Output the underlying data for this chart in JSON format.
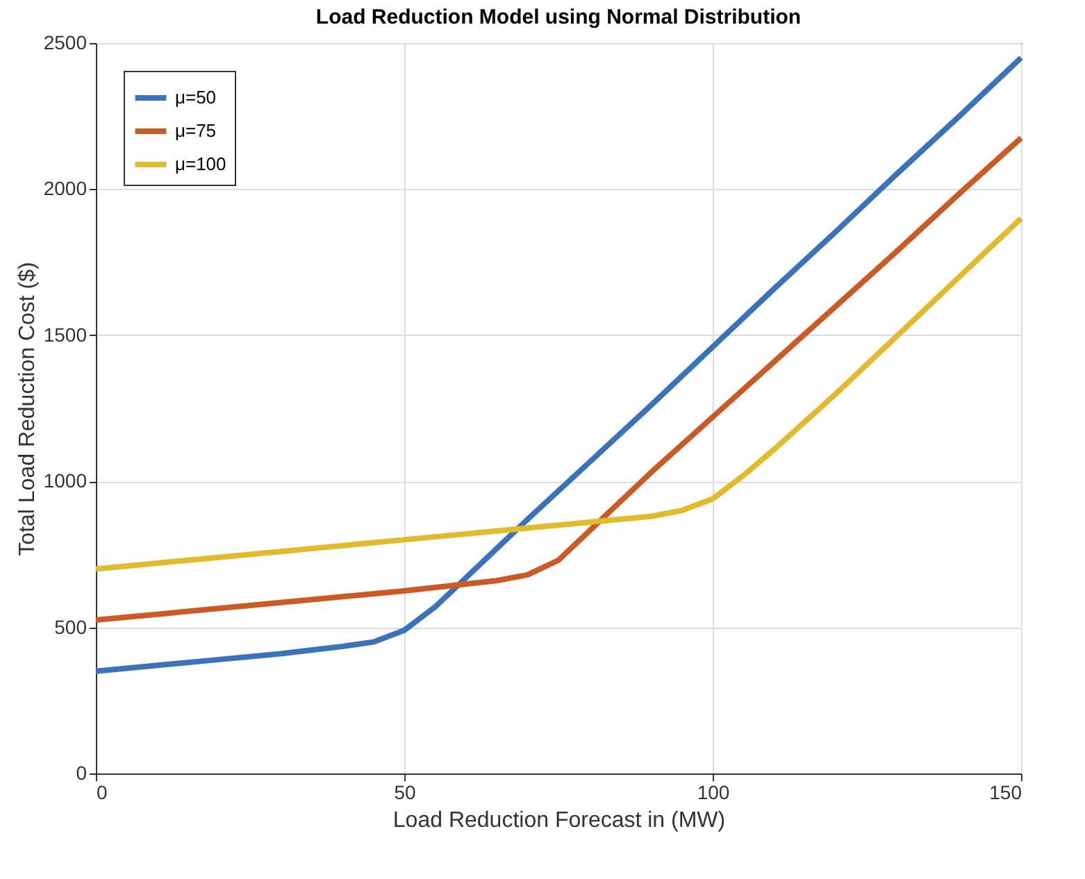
{
  "chart_data": {
    "type": "line",
    "title": "Load Reduction Model using Normal Distribution",
    "xlabel": "Load Reduction Forecast in (MW)",
    "ylabel": "Total Load Reduction Cost ($)",
    "xlim": [
      0,
      150
    ],
    "xticks": [
      0,
      50,
      100,
      150
    ],
    "ylim": [
      0,
      2500
    ],
    "yticks": [
      0,
      500,
      1000,
      1500,
      2000,
      2500
    ],
    "grid": true,
    "legend": "top left",
    "line_style": "solid",
    "marker": "none",
    "series": [
      {
        "name": "μ=50",
        "color": "#3a73b9",
        "x": [
          0,
          10,
          20,
          30,
          40,
          45,
          50,
          55,
          60,
          65,
          70,
          80,
          90,
          100,
          110,
          120,
          130,
          140,
          150
        ],
        "values": [
          350,
          370,
          390,
          410,
          435,
          450,
          490,
          570,
          670,
          770,
          870,
          1065,
          1260,
          1460,
          1660,
          1855,
          2055,
          2250,
          2450
        ]
      },
      {
        "name": "μ=75",
        "color": "#cc5a27",
        "x": [
          0,
          25,
          50,
          65,
          70,
          75,
          80,
          85,
          90,
          100,
          110,
          120,
          130,
          140,
          150
        ],
        "values": [
          525,
          575,
          625,
          660,
          680,
          730,
          830,
          930,
          1030,
          1220,
          1410,
          1600,
          1790,
          1985,
          2175
        ]
      },
      {
        "name": "μ=100",
        "color": "#e2bb2d",
        "x": [
          0,
          25,
          50,
          75,
          90,
          95,
          100,
          105,
          110,
          120,
          130,
          140,
          150
        ],
        "values": [
          700,
          750,
          800,
          850,
          880,
          900,
          940,
          1020,
          1110,
          1300,
          1500,
          1700,
          1900
        ]
      }
    ]
  }
}
